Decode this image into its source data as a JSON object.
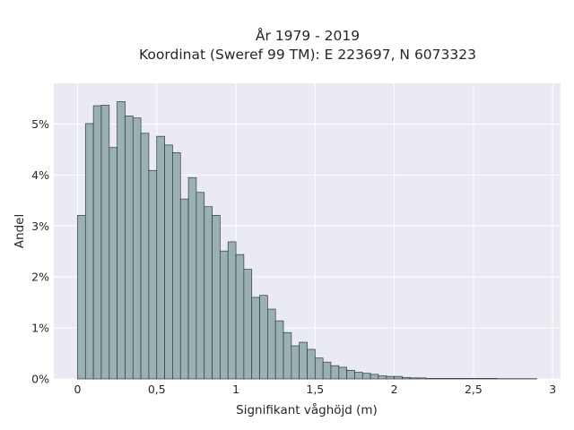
{
  "chart_data": {
    "type": "bar",
    "title": "År 1979 - 2019",
    "subtitle": "Koordinat (Sweref 99 TM): E 223697, N 6073323",
    "xlabel": "Signifikant våghöjd (m)",
    "ylabel": "Andel",
    "xlim": [
      -0.15,
      3.05
    ],
    "ylim": [
      0,
      0.058
    ],
    "bin_width": 0.05,
    "bin_start": 0.0,
    "x_ticks": [
      0,
      0.5,
      1,
      1.5,
      2,
      2.5,
      3
    ],
    "x_tick_labels": [
      "0",
      "0,5",
      "1",
      "1,5",
      "2",
      "2,5",
      "3"
    ],
    "y_ticks": [
      0,
      0.01,
      0.02,
      0.03,
      0.04,
      0.05
    ],
    "y_tick_labels": [
      "0%",
      "1%",
      "2%",
      "3%",
      "4%",
      "5%"
    ],
    "grid": true,
    "bar_color": "#9bb1b1",
    "bar_edge_color": "#2f3b3b",
    "background_color": "#eaeaf2",
    "grid_color": "#ffffff",
    "values": [
      0.0321,
      0.0501,
      0.0536,
      0.0537,
      0.0454,
      0.0544,
      0.0516,
      0.0512,
      0.0482,
      0.0409,
      0.0476,
      0.0459,
      0.0444,
      0.0353,
      0.0395,
      0.0366,
      0.0338,
      0.0321,
      0.0251,
      0.0269,
      0.0244,
      0.0215,
      0.016,
      0.0164,
      0.0137,
      0.0114,
      0.0091,
      0.0065,
      0.0072,
      0.0058,
      0.0041,
      0.0033,
      0.0026,
      0.0023,
      0.0017,
      0.0013,
      0.0011,
      0.0009,
      0.0006,
      0.0005,
      0.0005,
      0.0003,
      0.0002,
      0.0002,
      0.0001,
      0.0001,
      0.0001,
      0.0001,
      0.0001,
      0.0001,
      0.0001,
      0.0001,
      0.0001,
      5e-05,
      5e-05,
      5e-05,
      5e-05,
      5e-05
    ]
  }
}
